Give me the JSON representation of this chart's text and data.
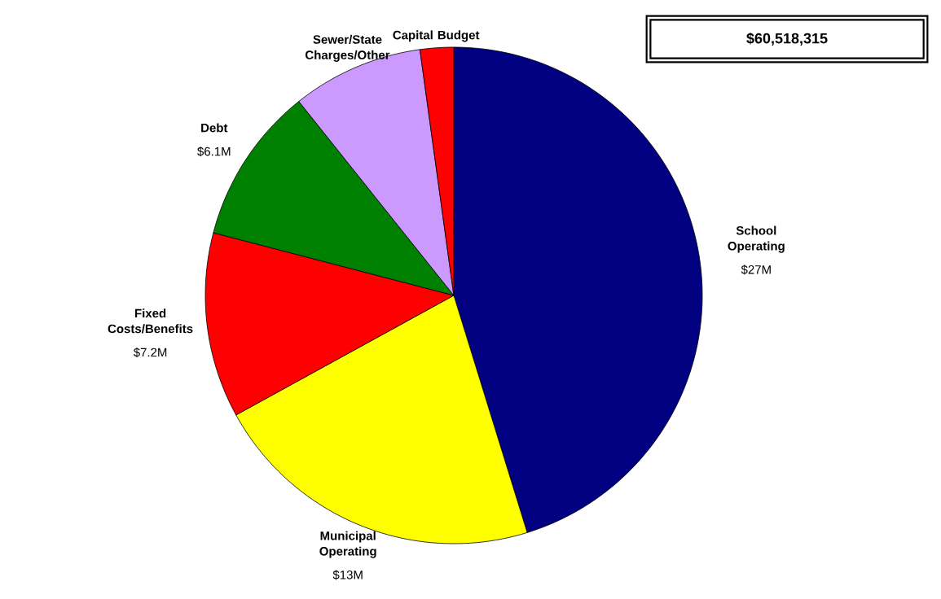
{
  "chart_data": {
    "type": "pie",
    "categories": [
      "School Operating",
      "Municipal Operating",
      "Fixed Costs/Benefits",
      "Debt",
      "Sewer/State Charges/Other",
      "Capital Budget"
    ],
    "values": [
      27,
      13,
      7.2,
      6.1,
      5.1,
      1.3
    ],
    "value_labels": [
      "$27M",
      "$13M",
      "$7.2M",
      "$6.1M",
      null,
      null
    ],
    "colors": [
      "#000080",
      "#ffff00",
      "#ff0000",
      "#008000",
      "#cc99ff",
      "#ff0000"
    ],
    "annotations": [
      "$60,518,315"
    ]
  }
}
